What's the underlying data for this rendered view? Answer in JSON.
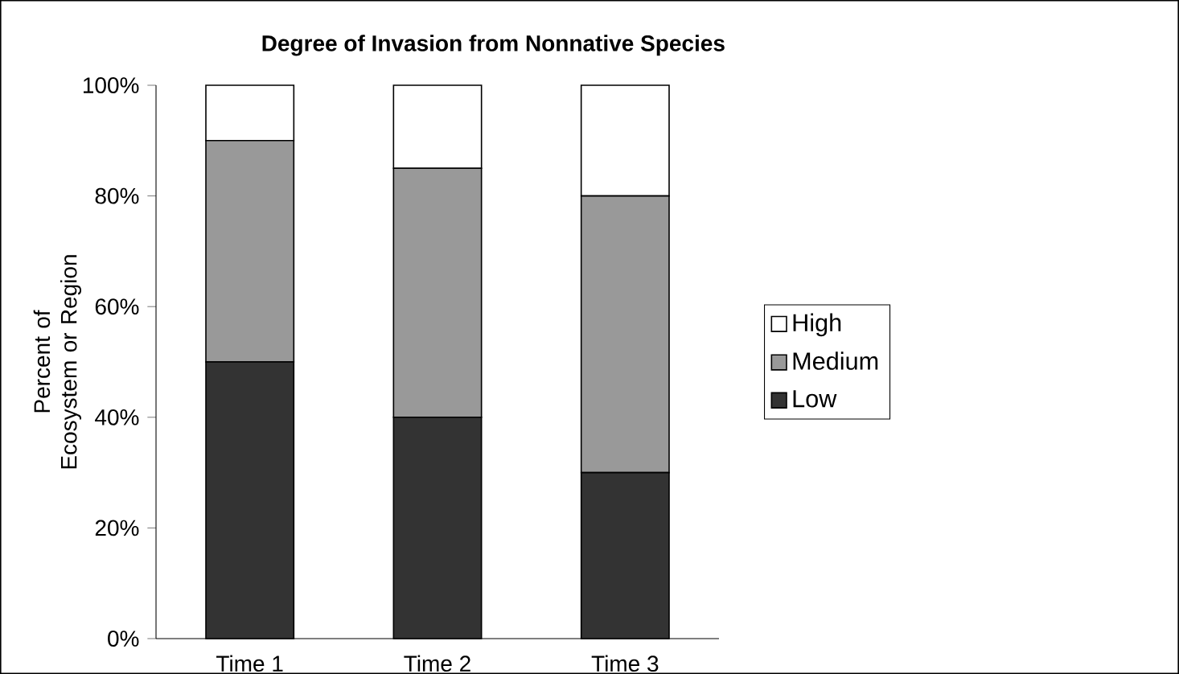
{
  "chart_data": {
    "type": "bar",
    "title": "Degree of Invasion from Nonnative Species",
    "ylabel": "Percent of Ecosystem or Region",
    "categories": [
      "Time 1",
      "Time 2",
      "Time 3"
    ],
    "series": [
      {
        "name": "Low",
        "color": "#333333",
        "values": [
          50,
          40,
          30
        ]
      },
      {
        "name": "Medium",
        "color": "#999999",
        "values": [
          40,
          45,
          50
        ]
      },
      {
        "name": "High",
        "color": "#ffffff",
        "values": [
          10,
          15,
          20
        ]
      }
    ],
    "stacked": true,
    "ylim": [
      0,
      100
    ],
    "yticks": [
      {
        "value": 0,
        "label": "0%"
      },
      {
        "value": 20,
        "label": "20%"
      },
      {
        "value": 40,
        "label": "40%"
      },
      {
        "value": 60,
        "label": "60%"
      },
      {
        "value": 80,
        "label": "80%"
      },
      {
        "value": 100,
        "label": "100%"
      }
    ],
    "legend": "right"
  }
}
